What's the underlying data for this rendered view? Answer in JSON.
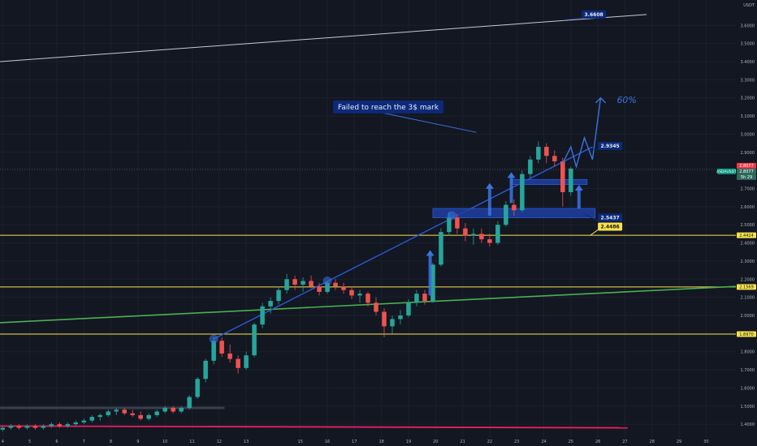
{
  "header": {
    "currency": "USDT"
  },
  "chart_data": {
    "type": "candlestick",
    "yaxis": {
      "min": 1.32,
      "max": 3.74,
      "ticks": [
        "3.6000",
        "3.5000",
        "3.4000",
        "3.3000",
        "3.2000",
        "3.1000",
        "3.0000",
        "2.9000",
        "2.8000",
        "2.7000",
        "2.6000",
        "2.5000",
        "2.4000",
        "2.3000",
        "2.2000",
        "2.1000",
        "2.0000",
        "1.9000",
        "1.8000",
        "1.7000",
        "1.6000",
        "1.5000",
        "1.4000"
      ],
      "tick_values": [
        3.6,
        3.5,
        3.4,
        3.3,
        3.2,
        3.1,
        3.0,
        2.9,
        2.8,
        2.7,
        2.6,
        2.5,
        2.4,
        2.3,
        2.2,
        2.1,
        2.0,
        1.9,
        1.8,
        1.7,
        1.6,
        1.5,
        1.4
      ]
    },
    "xaxis": {
      "min": 3.9,
      "max": 31.1,
      "ticks": [
        "4",
        "5",
        "6",
        "7",
        "8",
        "9",
        "10",
        "11",
        "12",
        "13",
        "15",
        "16",
        "17",
        "18",
        "19",
        "20",
        "21",
        "22",
        "23",
        "24",
        "25",
        "26",
        "27",
        "28",
        "29",
        "30"
      ],
      "tick_values": [
        4,
        5,
        6,
        7,
        8,
        9,
        10,
        11,
        12,
        13,
        15,
        16,
        17,
        18,
        19,
        20,
        21,
        22,
        23,
        24,
        25,
        26,
        27,
        28,
        29,
        30
      ]
    },
    "candles": [
      {
        "d": 4.0,
        "o": 1.37,
        "h": 1.39,
        "l": 1.36,
        "c": 1.38
      },
      {
        "d": 4.3,
        "o": 1.38,
        "h": 1.4,
        "l": 1.37,
        "c": 1.39
      },
      {
        "d": 4.6,
        "o": 1.39,
        "h": 1.4,
        "l": 1.37,
        "c": 1.38
      },
      {
        "d": 4.9,
        "o": 1.38,
        "h": 1.4,
        "l": 1.37,
        "c": 1.39
      },
      {
        "d": 5.2,
        "o": 1.39,
        "h": 1.4,
        "l": 1.37,
        "c": 1.38
      },
      {
        "d": 5.5,
        "o": 1.38,
        "h": 1.4,
        "l": 1.37,
        "c": 1.39
      },
      {
        "d": 5.8,
        "o": 1.39,
        "h": 1.41,
        "l": 1.38,
        "c": 1.4
      },
      {
        "d": 6.1,
        "o": 1.4,
        "h": 1.41,
        "l": 1.38,
        "c": 1.39
      },
      {
        "d": 6.4,
        "o": 1.39,
        "h": 1.41,
        "l": 1.38,
        "c": 1.4
      },
      {
        "d": 6.7,
        "o": 1.4,
        "h": 1.42,
        "l": 1.39,
        "c": 1.41
      },
      {
        "d": 7.0,
        "o": 1.41,
        "h": 1.43,
        "l": 1.4,
        "c": 1.42
      },
      {
        "d": 7.3,
        "o": 1.42,
        "h": 1.45,
        "l": 1.41,
        "c": 1.44
      },
      {
        "d": 7.6,
        "o": 1.44,
        "h": 1.46,
        "l": 1.42,
        "c": 1.45
      },
      {
        "d": 7.9,
        "o": 1.45,
        "h": 1.48,
        "l": 1.44,
        "c": 1.47
      },
      {
        "d": 8.2,
        "o": 1.47,
        "h": 1.49,
        "l": 1.45,
        "c": 1.48
      },
      {
        "d": 8.5,
        "o": 1.48,
        "h": 1.49,
        "l": 1.45,
        "c": 1.46
      },
      {
        "d": 8.8,
        "o": 1.46,
        "h": 1.48,
        "l": 1.44,
        "c": 1.45
      },
      {
        "d": 9.1,
        "o": 1.45,
        "h": 1.47,
        "l": 1.42,
        "c": 1.43
      },
      {
        "d": 9.4,
        "o": 1.43,
        "h": 1.46,
        "l": 1.42,
        "c": 1.45
      },
      {
        "d": 9.7,
        "o": 1.45,
        "h": 1.48,
        "l": 1.44,
        "c": 1.47
      },
      {
        "d": 10.0,
        "o": 1.47,
        "h": 1.5,
        "l": 1.46,
        "c": 1.49
      },
      {
        "d": 10.3,
        "o": 1.49,
        "h": 1.5,
        "l": 1.46,
        "c": 1.47
      },
      {
        "d": 10.6,
        "o": 1.47,
        "h": 1.5,
        "l": 1.46,
        "c": 1.49
      },
      {
        "d": 10.9,
        "o": 1.49,
        "h": 1.56,
        "l": 1.48,
        "c": 1.55
      },
      {
        "d": 11.2,
        "o": 1.55,
        "h": 1.66,
        "l": 1.54,
        "c": 1.65
      },
      {
        "d": 11.5,
        "o": 1.65,
        "h": 1.76,
        "l": 1.63,
        "c": 1.75
      },
      {
        "d": 11.8,
        "o": 1.75,
        "h": 1.88,
        "l": 1.73,
        "c": 1.86
      },
      {
        "d": 12.1,
        "o": 1.86,
        "h": 1.88,
        "l": 1.77,
        "c": 1.79
      },
      {
        "d": 12.4,
        "o": 1.79,
        "h": 1.84,
        "l": 1.74,
        "c": 1.76
      },
      {
        "d": 12.7,
        "o": 1.76,
        "h": 1.78,
        "l": 1.68,
        "c": 1.71
      },
      {
        "d": 13.0,
        "o": 1.71,
        "h": 1.8,
        "l": 1.7,
        "c": 1.78
      },
      {
        "d": 13.3,
        "o": 1.78,
        "h": 1.96,
        "l": 1.77,
        "c": 1.95
      },
      {
        "d": 13.6,
        "o": 1.95,
        "h": 2.07,
        "l": 1.93,
        "c": 2.05
      },
      {
        "d": 13.9,
        "o": 2.05,
        "h": 2.1,
        "l": 2.01,
        "c": 2.08
      },
      {
        "d": 14.2,
        "o": 2.08,
        "h": 2.16,
        "l": 2.06,
        "c": 2.14
      },
      {
        "d": 14.5,
        "o": 2.14,
        "h": 2.23,
        "l": 2.12,
        "c": 2.2
      },
      {
        "d": 14.8,
        "o": 2.2,
        "h": 2.22,
        "l": 2.14,
        "c": 2.17
      },
      {
        "d": 15.1,
        "o": 2.17,
        "h": 2.21,
        "l": 2.13,
        "c": 2.19
      },
      {
        "d": 15.4,
        "o": 2.19,
        "h": 2.22,
        "l": 2.15,
        "c": 2.16
      },
      {
        "d": 15.7,
        "o": 2.16,
        "h": 2.18,
        "l": 2.11,
        "c": 2.13
      },
      {
        "d": 16.0,
        "o": 2.13,
        "h": 2.19,
        "l": 2.12,
        "c": 2.18
      },
      {
        "d": 16.3,
        "o": 2.18,
        "h": 2.2,
        "l": 2.14,
        "c": 2.16
      },
      {
        "d": 16.6,
        "o": 2.16,
        "h": 2.18,
        "l": 2.12,
        "c": 2.14
      },
      {
        "d": 16.9,
        "o": 2.14,
        "h": 2.16,
        "l": 2.09,
        "c": 2.11
      },
      {
        "d": 17.2,
        "o": 2.11,
        "h": 2.14,
        "l": 2.07,
        "c": 2.12
      },
      {
        "d": 17.5,
        "o": 2.12,
        "h": 2.13,
        "l": 2.05,
        "c": 2.07
      },
      {
        "d": 17.8,
        "o": 2.07,
        "h": 2.1,
        "l": 2.0,
        "c": 2.02
      },
      {
        "d": 18.1,
        "o": 2.02,
        "h": 2.04,
        "l": 1.88,
        "c": 1.94
      },
      {
        "d": 18.4,
        "o": 1.94,
        "h": 2.0,
        "l": 1.9,
        "c": 1.98
      },
      {
        "d": 18.7,
        "o": 1.98,
        "h": 2.03,
        "l": 1.95,
        "c": 2.0
      },
      {
        "d": 19.0,
        "o": 2.0,
        "h": 2.09,
        "l": 1.99,
        "c": 2.07
      },
      {
        "d": 19.3,
        "o": 2.07,
        "h": 2.14,
        "l": 2.05,
        "c": 2.12
      },
      {
        "d": 19.6,
        "o": 2.12,
        "h": 2.14,
        "l": 2.06,
        "c": 2.08
      },
      {
        "d": 19.9,
        "o": 2.08,
        "h": 2.29,
        "l": 2.07,
        "c": 2.28
      },
      {
        "d": 20.2,
        "o": 2.28,
        "h": 2.48,
        "l": 2.27,
        "c": 2.46
      },
      {
        "d": 20.5,
        "o": 2.46,
        "h": 2.57,
        "l": 2.44,
        "c": 2.54
      },
      {
        "d": 20.8,
        "o": 2.54,
        "h": 2.56,
        "l": 2.45,
        "c": 2.48
      },
      {
        "d": 21.1,
        "o": 2.48,
        "h": 2.51,
        "l": 2.41,
        "c": 2.44
      },
      {
        "d": 21.4,
        "o": 2.44,
        "h": 2.48,
        "l": 2.39,
        "c": 2.45
      },
      {
        "d": 21.7,
        "o": 2.45,
        "h": 2.48,
        "l": 2.4,
        "c": 2.42
      },
      {
        "d": 22.0,
        "o": 2.42,
        "h": 2.45,
        "l": 2.38,
        "c": 2.4
      },
      {
        "d": 22.3,
        "o": 2.4,
        "h": 2.52,
        "l": 2.39,
        "c": 2.5
      },
      {
        "d": 22.6,
        "o": 2.5,
        "h": 2.63,
        "l": 2.49,
        "c": 2.61
      },
      {
        "d": 22.9,
        "o": 2.61,
        "h": 2.64,
        "l": 2.55,
        "c": 2.58
      },
      {
        "d": 23.2,
        "o": 2.58,
        "h": 2.8,
        "l": 2.57,
        "c": 2.78
      },
      {
        "d": 23.5,
        "o": 2.78,
        "h": 2.88,
        "l": 2.76,
        "c": 2.86
      },
      {
        "d": 23.8,
        "o": 2.86,
        "h": 2.96,
        "l": 2.84,
        "c": 2.93
      },
      {
        "d": 24.1,
        "o": 2.93,
        "h": 2.95,
        "l": 2.84,
        "c": 2.88
      },
      {
        "d": 24.4,
        "o": 2.88,
        "h": 2.91,
        "l": 2.82,
        "c": 2.85
      },
      {
        "d": 24.7,
        "o": 2.85,
        "h": 2.87,
        "l": 2.6,
        "c": 2.68
      },
      {
        "d": 25.0,
        "o": 2.68,
        "h": 2.82,
        "l": 2.66,
        "c": 2.81
      }
    ],
    "horizontal_levels": [
      {
        "value": 2.4424,
        "label": "2.4424",
        "color": "#f7e24b"
      },
      {
        "value": 2.1569,
        "label": "2.1569",
        "color": "#f7e24b"
      },
      {
        "value": 1.897,
        "label": "1.8970",
        "color": "#f7e24b"
      }
    ],
    "trendlines": [
      {
        "from": [
          3.9,
          3.4
        ],
        "to": [
          27.8,
          3.66
        ],
        "color": "#c9c9cf",
        "width": 1
      },
      {
        "from": [
          3.9,
          1.96
        ],
        "to": [
          31.1,
          2.16
        ],
        "color": "#4caf50",
        "width": 1.6
      },
      {
        "from": [
          3.9,
          1.39
        ],
        "to": [
          27.1,
          1.38
        ],
        "color": "#e91e63",
        "width": 1.8
      },
      {
        "from": [
          11.8,
          1.87
        ],
        "to": [
          25.8,
          2.93
        ],
        "color": "#2a5ad7",
        "width": 1.4
      },
      {
        "from": [
          3.9,
          1.49
        ],
        "to": [
          12.2,
          1.49
        ],
        "color": "#3a3e4a",
        "width": 3
      }
    ],
    "boxes": [
      {
        "x0": 19.9,
        "x1": 25.9,
        "y0": 2.539,
        "y1": 2.59
      },
      {
        "x0": 22.8,
        "x1": 25.6,
        "y0": 2.722,
        "y1": 2.75
      }
    ],
    "arrows": [
      {
        "from": [
          19.8,
          2.11
        ],
        "to": [
          19.8,
          2.36
        ]
      },
      {
        "from": [
          22.0,
          2.55
        ],
        "to": [
          22.0,
          2.73
        ]
      },
      {
        "from": [
          22.8,
          2.62
        ],
        "to": [
          22.8,
          2.79
        ]
      },
      {
        "from": [
          25.3,
          2.59
        ],
        "to": [
          25.3,
          2.72
        ]
      }
    ],
    "projection": [
      [
        24.7,
        2.84
      ],
      [
        25.0,
        2.93
      ],
      [
        25.2,
        2.82
      ],
      [
        25.5,
        2.98
      ],
      [
        25.8,
        2.86
      ],
      [
        26.1,
        3.2
      ]
    ],
    "circles": [
      {
        "x": 11.8,
        "y": 1.87
      },
      {
        "x": 16.0,
        "y": 2.19
      },
      {
        "x": 20.6,
        "y": 2.55
      }
    ],
    "annotations": [
      {
        "text": "Failed to reach the 3$ mark",
        "x": 16.3,
        "y": 3.15,
        "pointer_to": [
          21.5,
          3.01
        ]
      },
      {
        "text": "60%",
        "x": 26.7,
        "y": 3.19
      }
    ],
    "price_tags": [
      {
        "text": "3.6608",
        "x": 25.4,
        "y": 3.66,
        "style": "dark-blue",
        "pointer_to": [
          24.7,
          3.63
        ]
      },
      {
        "text": "2.9345",
        "x": 26.0,
        "y": 2.935,
        "style": "dark-blue",
        "pointer_to": [
          25.7,
          2.91
        ]
      },
      {
        "text": "2.5437",
        "x": 26.0,
        "y": 2.54,
        "style": "dark-blue",
        "pointer_to": [
          25.5,
          2.56
        ]
      },
      {
        "text": "2.4486",
        "x": 26.0,
        "y": 2.49,
        "style": "yellow",
        "pointer_to": [
          25.7,
          2.44
        ]
      }
    ],
    "right_badges": [
      {
        "text": "2.8077",
        "y": 2.8077,
        "color": "#f23645",
        "dy": -4
      },
      {
        "text": "2.8077",
        "y": 2.8077,
        "color": "#2f6b5d",
        "dy": 3
      },
      {
        "text": "5h 29",
        "y": 2.8077,
        "color": "#2f6b5d",
        "dy": 10
      }
    ],
    "symbol_badge": {
      "text": "ASDAUSDT",
      "y": 2.8077,
      "color": "#089981"
    },
    "current_price": 2.8077
  }
}
